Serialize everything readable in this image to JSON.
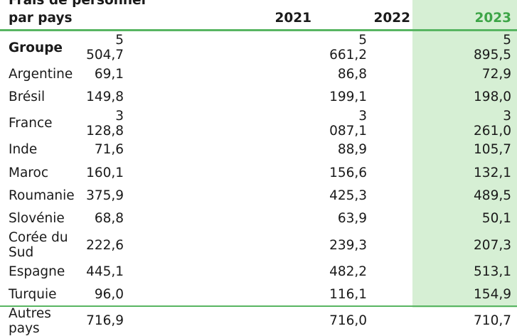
{
  "table": {
    "title_line1": "Frais de personnel",
    "title_line2": "par pays",
    "years": [
      "2021",
      "2022",
      "2023"
    ],
    "rows": [
      {
        "label": "Groupe",
        "v2021": "5 504,7",
        "v2022": "5 661,2",
        "v2023": "5 895,5"
      },
      {
        "label": "Argentine",
        "v2021": "69,1",
        "v2022": "86,8",
        "v2023": "72,9"
      },
      {
        "label": "Brésil",
        "v2021": "149,8",
        "v2022": "199,1",
        "v2023": "198,0"
      },
      {
        "label": "France",
        "v2021": "3 128,8",
        "v2022": "3 087,1",
        "v2023": "3 261,0"
      },
      {
        "label": "Inde",
        "v2021": "71,6",
        "v2022": "88,9",
        "v2023": "105,7"
      },
      {
        "label": "Maroc",
        "v2021": "160,1",
        "v2022": "156,6",
        "v2023": "132,1"
      },
      {
        "label": "Roumanie",
        "v2021": "375,9",
        "v2022": "425,3",
        "v2023": "489,5"
      },
      {
        "label": "Slovénie",
        "v2021": "68,8",
        "v2022": "63,9",
        "v2023": "50,1"
      },
      {
        "label": "Corée du Sud",
        "v2021": "222,6",
        "v2022": "239,3",
        "v2023": "207,3"
      },
      {
        "label": "Espagne",
        "v2021": "445,1",
        "v2022": "482,2",
        "v2023": "513,1"
      },
      {
        "label": "Turquie",
        "v2021": "96,0",
        "v2022": "116,1",
        "v2023": "154,9"
      },
      {
        "label": "Autres pays",
        "v2021": "716,9",
        "v2022": "716,0",
        "v2023": "710,7"
      }
    ]
  },
  "colors": {
    "highlight_column": "#d6efd4",
    "accent_green": "#3da547",
    "rule_green": "#58b562"
  }
}
